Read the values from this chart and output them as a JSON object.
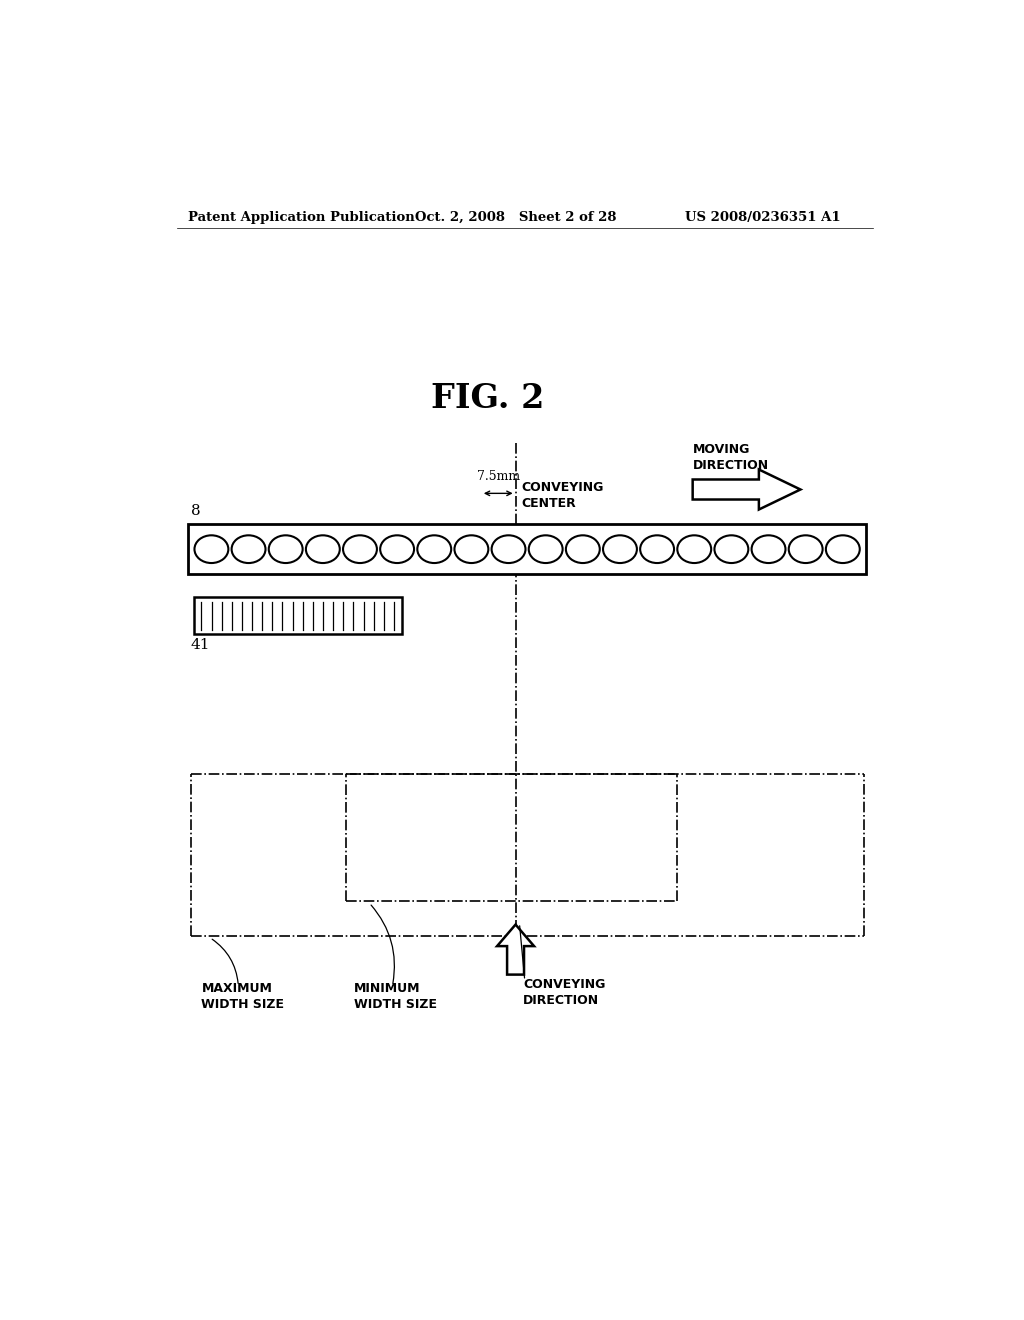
{
  "bg_color": "#ffffff",
  "header_left": "Patent Application Publication",
  "header_mid": "Oct. 2, 2008   Sheet 2 of 28",
  "header_right": "US 2008/0236351 A1",
  "fig_title": "FIG. 2",
  "label_8": "8",
  "label_41": "41",
  "label_75mm": "7.5mm",
  "label_conveying_center": "CONVEYING\nCENTER",
  "label_moving_direction": "MOVING\nDIRECTION",
  "label_max_width": "MAXIMUM\nWIDTH SIZE",
  "label_min_width": "MINIMUM\nWIDTH SIZE",
  "label_conveying_direction": "CONVEYING\nDIRECTION",
  "num_holes": 18,
  "num_inner_lines": 20
}
